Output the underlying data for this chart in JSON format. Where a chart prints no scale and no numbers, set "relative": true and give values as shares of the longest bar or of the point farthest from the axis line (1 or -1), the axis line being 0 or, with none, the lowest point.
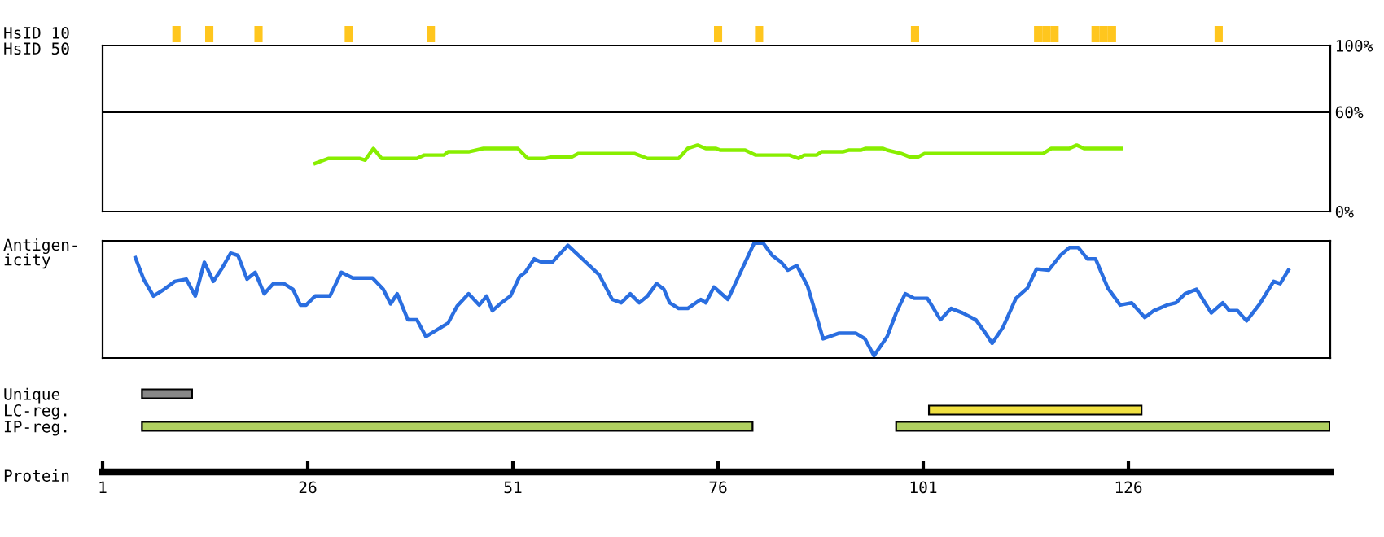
{
  "chart_data": [
    {
      "type": "bar",
      "ylabel": "HsID 10",
      "relative": true,
      "tick_labels": false,
      "xlim": [
        1,
        150.6
      ],
      "color": "#ffc61e",
      "x": [
        10,
        14,
        20,
        31,
        41,
        76,
        81,
        100,
        115,
        116,
        117,
        122,
        123,
        124,
        137
      ],
      "values": [
        1,
        1,
        1,
        1,
        1,
        1,
        1,
        1,
        1,
        1,
        1,
        1,
        1,
        1,
        1
      ]
    },
    {
      "type": "line",
      "ylabel": "HsID 50",
      "tick_labels": "y",
      "xlim": [
        1,
        150.6
      ],
      "ylim": [
        0,
        100
      ],
      "yticks": [
        {
          "value": 0,
          "label": "0%"
        },
        {
          "value": 60,
          "label": "60%"
        },
        {
          "value": 100,
          "label": "100%"
        }
      ],
      "ref_lines": [
        {
          "axis": "y",
          "value": 60,
          "color": "#000000"
        }
      ],
      "series": [
        {
          "color": "#88ee00",
          "x": [
            26.9,
            28.5,
            32.3,
            33.0,
            34.0,
            35.0,
            39.3,
            40.2,
            42.6,
            43.1,
            45.6,
            47.4,
            51.6,
            52.8,
            55.0,
            55.8,
            58.2,
            59.0,
            65.8,
            67.4,
            71.2,
            72.3,
            73.5,
            74.5,
            75.7,
            76.3,
            79.3,
            80.6,
            84.7,
            85.8,
            86.5,
            88.0,
            88.6,
            91.2,
            91.9,
            93.4,
            94.0,
            96.1,
            96.6,
            98.3,
            99.3,
            100.4,
            101.2,
            115.6,
            116.6,
            118.8,
            119.7,
            120.6,
            125.1
          ],
          "values": [
            29,
            32,
            32,
            31,
            38,
            32,
            32,
            34,
            34,
            36,
            36,
            38,
            38,
            32,
            32,
            33,
            33,
            35,
            35,
            32,
            32,
            38,
            40,
            38,
            38,
            37,
            37,
            34,
            34,
            32,
            34,
            34,
            36,
            36,
            37,
            37,
            38,
            38,
            37,
            35,
            33,
            33,
            35,
            35,
            38,
            38,
            40,
            38,
            38
          ]
        }
      ]
    },
    {
      "type": "line",
      "ylabel": "Antigen-\nicity",
      "relative": true,
      "tick_labels": false,
      "xlim": [
        1,
        150.6
      ],
      "series": [
        {
          "color": "#2a6ee0",
          "x": [
            5.0,
            6.0,
            7.2,
            8.5,
            9.8,
            11.2,
            12.3,
            13.4,
            14.5,
            15.5,
            16.6,
            17.5,
            18.6,
            19.6,
            20.7,
            21.8,
            23.1,
            24.2,
            25.1,
            25.8,
            26.9,
            28.7,
            30.1,
            31.5,
            33.9,
            35.2,
            36.1,
            36.9,
            38.2,
            39.3,
            40.4,
            43.1,
            44.2,
            45.6,
            46.9,
            47.8,
            48.5,
            49.6,
            50.7,
            51.8,
            52.5,
            53.6,
            54.5,
            55.8,
            57.7,
            59.9,
            61.5,
            63.1,
            64.2,
            65.3,
            66.4,
            67.4,
            68.5,
            69.4,
            70.1,
            71.2,
            72.3,
            73.9,
            74.5,
            75.5,
            77.2,
            78.8,
            80.4,
            81.5,
            82.6,
            83.7,
            84.5,
            85.6,
            86.9,
            87.8,
            88.8,
            90.7,
            92.8,
            93.9,
            95.0,
            96.6,
            97.7,
            98.8,
            99.9,
            101.5,
            103.1,
            104.4,
            105.8,
            107.4,
            108.5,
            109.4,
            110.7,
            112.3,
            113.7,
            114.8,
            116.3,
            117.7,
            118.8,
            119.9,
            121.0,
            122.0,
            123.5,
            125.0,
            126.4,
            128.0,
            129.1,
            130.7,
            131.8,
            132.9,
            134.3,
            136.1,
            137.5,
            138.3,
            139.3,
            140.4,
            142.0,
            143.7,
            144.5,
            145.5
          ],
          "values": [
            0.87,
            0.68,
            0.53,
            0.59,
            0.66,
            0.68,
            0.53,
            0.83,
            0.66,
            0.77,
            0.91,
            0.89,
            0.68,
            0.74,
            0.55,
            0.64,
            0.64,
            0.59,
            0.45,
            0.45,
            0.53,
            0.53,
            0.74,
            0.69,
            0.69,
            0.59,
            0.46,
            0.55,
            0.32,
            0.32,
            0.17,
            0.29,
            0.44,
            0.55,
            0.45,
            0.53,
            0.4,
            0.47,
            0.53,
            0.7,
            0.74,
            0.86,
            0.83,
            0.83,
            0.98,
            0.83,
            0.72,
            0.5,
            0.47,
            0.55,
            0.47,
            0.53,
            0.64,
            0.59,
            0.47,
            0.42,
            0.42,
            0.5,
            0.47,
            0.61,
            0.5,
            0.75,
            1.0,
            1.0,
            0.89,
            0.83,
            0.76,
            0.8,
            0.62,
            0.4,
            0.15,
            0.2,
            0.2,
            0.15,
            0.0,
            0.17,
            0.38,
            0.55,
            0.51,
            0.51,
            0.32,
            0.42,
            0.38,
            0.32,
            0.21,
            0.11,
            0.25,
            0.51,
            0.6,
            0.77,
            0.76,
            0.89,
            0.96,
            0.96,
            0.86,
            0.86,
            0.6,
            0.45,
            0.47,
            0.34,
            0.4,
            0.45,
            0.47,
            0.55,
            0.59,
            0.38,
            0.47,
            0.4,
            0.4,
            0.31,
            0.46,
            0.66,
            0.64,
            0.76
          ]
        }
      ]
    },
    {
      "type": "bar",
      "orientation": "horizontal",
      "xlabel": "Protein",
      "xlim": [
        1,
        150.6
      ],
      "xticks": [
        1,
        26,
        51,
        76,
        101,
        126
      ],
      "categories": [
        "Unique",
        "LC-reg.",
        "IP-reg."
      ],
      "series": [
        {
          "colors": [
            "#888888",
            "#f0e040",
            "#b0d060"
          ],
          "base": [
            5.8,
            101.7,
            5.8
          ],
          "values": [
            6.1,
            25.9,
            74.4
          ]
        },
        {
          "colors": [
            null,
            null,
            "#b0d060"
          ],
          "base": [
            null,
            null,
            97.7
          ],
          "values": [
            null,
            null,
            52.9
          ]
        }
      ]
    }
  ]
}
